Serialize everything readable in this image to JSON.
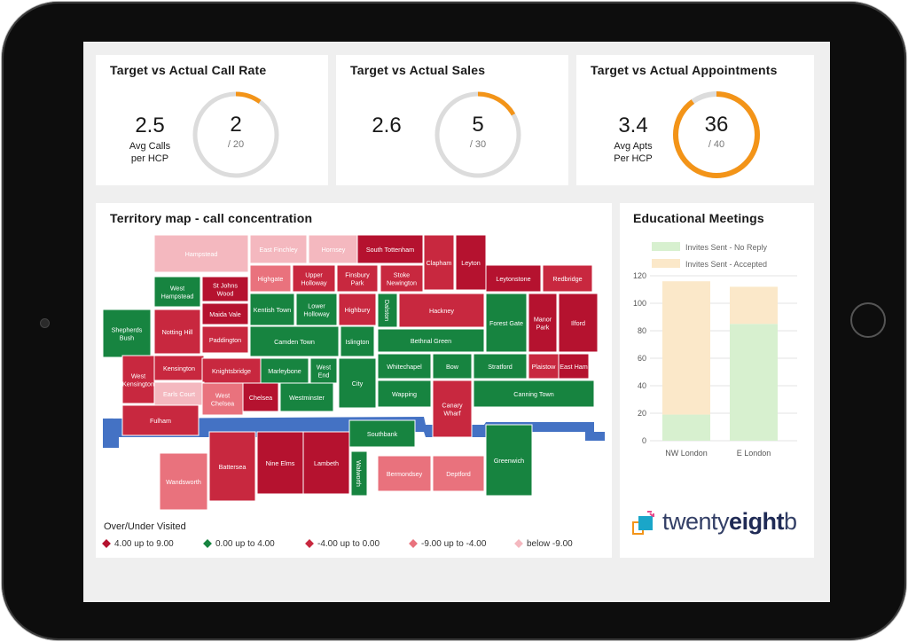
{
  "kpis": [
    {
      "title": "Target vs Actual Call Rate",
      "avg_value": "2.5",
      "avg_label_line1": "Avg Calls",
      "avg_label_line2": "per HCP",
      "actual": "2",
      "target_text": "/ 20",
      "progress": 0.1
    },
    {
      "title": "Target vs Actual Sales",
      "avg_value": "2.6",
      "avg_label_line1": "",
      "avg_label_line2": "",
      "actual": "5",
      "target_text": "/ 30",
      "progress": 0.167
    },
    {
      "title": "Target vs Actual Appointments",
      "avg_value": "3.4",
      "avg_label_line1": "Avg Apts",
      "avg_label_line2": "Per HCP",
      "actual": "36",
      "target_text": "/ 40",
      "progress": 0.9
    }
  ],
  "colors": {
    "accent": "#f39418",
    "gauge_track": "#dcdcdc",
    "cat1": "#b5122f",
    "cat2": "#178440",
    "cat3": "#c8283f",
    "cat4": "#e9727d",
    "cat5": "#f4b8bf",
    "river": "#4472c4",
    "bar_no_reply": "#d7f0cf",
    "bar_accepted": "#fbe8c9"
  },
  "map": {
    "title": "Territory map - call concentration",
    "legend_title": "Over/Under Visited",
    "legend": [
      {
        "label": "4.00 up to 9.00",
        "color": "#b5122f"
      },
      {
        "label": "0.00 up to 4.00",
        "color": "#178440"
      },
      {
        "label": "-4.00 up to 0.00",
        "color": "#c8283f"
      },
      {
        "label": "-9.00 up to -4.00",
        "color": "#e9727d"
      },
      {
        "label": "below -9.00",
        "color": "#f4b8bf"
      }
    ],
    "areas": [
      "Hampstead",
      "East Finchley",
      "Hornsey",
      "South Tottenham",
      "Clapham",
      "Leyton",
      "West Hampstead",
      "St Johns Wood",
      "Highgate",
      "Upper Holloway",
      "Finsbury Park",
      "Stoke Newington",
      "Leytonstone",
      "Redbridge",
      "Kentish Town",
      "Lower Holloway",
      "Highbury",
      "Dalston",
      "Hackney",
      "Maida Vale",
      "Shepherds Bush",
      "Notting Hill",
      "Forest Gate",
      "Manor Park",
      "Ilford",
      "Paddington",
      "Camden Town",
      "Islington",
      "Bethnal Green",
      "Kensington",
      "Knightsbridge",
      "Marleybone",
      "West End",
      "Whitechapel",
      "Bow",
      "Stratford",
      "Plaistow",
      "East Ham",
      "West Kensington",
      "City",
      "Earls Court",
      "West Chelsea",
      "Chelsea",
      "Westminster",
      "Wapping",
      "Canary Wharf",
      "Canning Town",
      "Fulham",
      "Southbank",
      "Battersea",
      "Nine Elms",
      "Lambeth",
      "Walworth",
      "Bermondsey",
      "Deptford",
      "Greenwich",
      "Wandsworth"
    ]
  },
  "edu": {
    "title": "Educational Meetings",
    "chart_data": {
      "type": "bar",
      "stacked": true,
      "categories": [
        "NW London",
        "E London"
      ],
      "series": [
        {
          "name": "Invites Sent - No Reply",
          "values": [
            19,
            85
          ]
        },
        {
          "name": "Invites Sent - Accepted",
          "values": [
            97,
            27
          ]
        }
      ],
      "y_ticks": [
        "0",
        "20",
        "40",
        "60",
        "80",
        "100",
        "120"
      ],
      "ylim": [
        0,
        120
      ]
    }
  },
  "logo": {
    "text_a": "twenty",
    "text_b": "eight",
    "text_c": "b"
  }
}
